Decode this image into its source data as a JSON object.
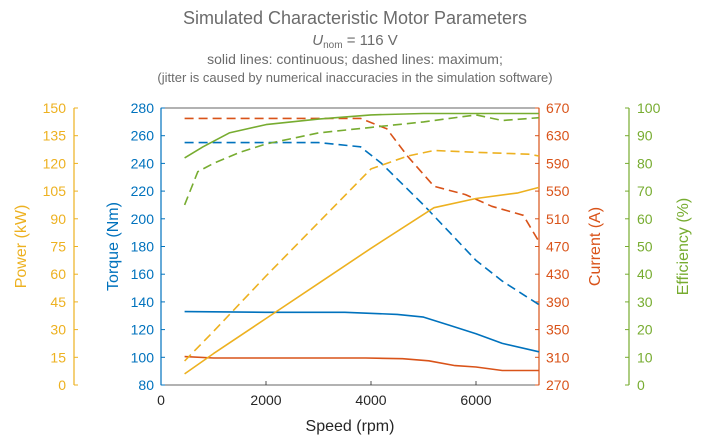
{
  "chart_data": {
    "type": "line",
    "title": "Simulated Characteristic Motor Parameters",
    "subtitle": {
      "prefix": "U",
      "subscript": "nom",
      "suffix": " = 116 V"
    },
    "note_line1": "solid lines: continuous; dashed lines: maximum;",
    "note_line2": "(jitter is caused by numerical inaccuracies in the simulation software)",
    "xlabel": "Speed (rpm)",
    "xlim": [
      0,
      7200
    ],
    "xticks": [
      "0",
      "2000",
      "4000",
      "6000"
    ],
    "grid": false,
    "axes": {
      "power": {
        "label": "Power (kW)",
        "color": "#edb120",
        "ylim": [
          0,
          150
        ],
        "ticks": [
          "0",
          "15",
          "30",
          "45",
          "60",
          "75",
          "90",
          "105",
          "120",
          "135",
          "150"
        ]
      },
      "torque": {
        "label": "Torque (Nm)",
        "color": "#0072bd",
        "ylim": [
          80,
          280
        ],
        "ticks": [
          "80",
          "100",
          "120",
          "140",
          "160",
          "180",
          "200",
          "220",
          "240",
          "260",
          "280"
        ]
      },
      "current": {
        "label": "Current (A)",
        "color": "#d95319",
        "ylim": [
          270,
          670
        ],
        "ticks": [
          "270",
          "310",
          "350",
          "390",
          "430",
          "470",
          "510",
          "550",
          "590",
          "630",
          "670"
        ]
      },
      "efficiency": {
        "label": "Efficiency (%)",
        "color": "#77ac30",
        "ylim": [
          0,
          100
        ],
        "ticks": [
          "0",
          "10",
          "20",
          "30",
          "40",
          "50",
          "60",
          "70",
          "80",
          "90",
          "100"
        ]
      }
    },
    "series": [
      {
        "axis": "torque",
        "style": "solid",
        "x": [
          450,
          2000,
          3500,
          4500,
          5000,
          5500,
          6000,
          6500,
          7200
        ],
        "values": [
          133,
          132.5,
          132.5,
          131,
          129,
          123,
          117,
          110,
          104
        ]
      },
      {
        "axis": "torque",
        "style": "dashed",
        "x": [
          450,
          3000,
          3800,
          4200,
          4600,
          5000,
          5500,
          6000,
          6500,
          7200
        ],
        "values": [
          255,
          255,
          252,
          240,
          225,
          210,
          190,
          170,
          155,
          138
        ]
      },
      {
        "axis": "current",
        "style": "solid",
        "x": [
          450,
          1000,
          3900,
          4600,
          5100,
          5600,
          6000,
          6500,
          7200
        ],
        "values": [
          311,
          309,
          309,
          308,
          305,
          298,
          296,
          291,
          291
        ]
      },
      {
        "axis": "current",
        "style": "dashed",
        "x": [
          450,
          3800,
          4300,
          4700,
          5200,
          5800,
          6300,
          6900,
          7200
        ],
        "values": [
          655,
          655,
          640,
          600,
          557,
          545,
          528,
          515,
          477
        ]
      },
      {
        "axis": "power",
        "style": "solid",
        "x": [
          450,
          1000,
          2000,
          3000,
          4000,
          5200,
          6000,
          6800,
          7200
        ],
        "values": [
          6,
          17,
          36,
          55,
          74,
          96,
          101,
          104,
          107
        ]
      },
      {
        "axis": "power",
        "style": "dashed",
        "x": [
          450,
          1000,
          2000,
          3000,
          4000,
          4700,
          5200,
          6000,
          7000,
          7200
        ],
        "values": [
          13,
          29,
          59,
          88,
          117,
          124,
          127,
          126,
          125,
          124
        ]
      },
      {
        "axis": "efficiency",
        "style": "solid",
        "x": [
          450,
          800,
          1300,
          2000,
          3000,
          4000,
          5000,
          6000,
          7200
        ],
        "values": [
          82,
          86,
          91,
          94,
          96,
          97.5,
          98,
          98,
          98
        ]
      },
      {
        "axis": "efficiency",
        "style": "dashed",
        "x": [
          450,
          700,
          1000,
          1500,
          2000,
          3000,
          4000,
          5000,
          6000,
          6500,
          7200
        ],
        "values": [
          65,
          77,
          80,
          84,
          87,
          91,
          93,
          95,
          97.5,
          95.5,
          96.5
        ]
      }
    ]
  }
}
